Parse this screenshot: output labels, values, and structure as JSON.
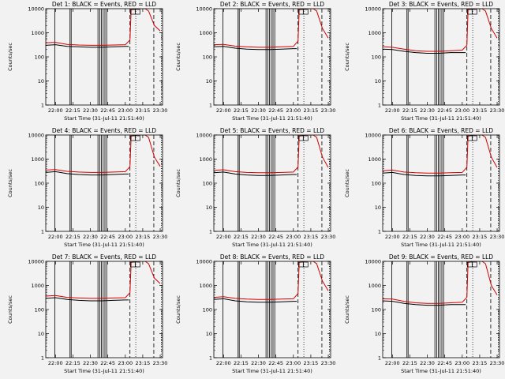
{
  "colors": {
    "background": "#f2f2f2",
    "events": "#000000",
    "lld": "#d40000",
    "axes": "#000000"
  },
  "chart_data": [
    {
      "type": "line",
      "title": "Det 1: BLACK = Events, RED = LLD",
      "ylabel": "Counts/sec",
      "xlabel": "Start Time (31-Jul-11 21:51:40)",
      "y_scale": "log",
      "ylim": [
        1,
        10000
      ],
      "y_tick_labels": [
        "1",
        "10",
        "100",
        "1000",
        "10000"
      ],
      "xlim": [
        "21:51:40",
        "23:32:00"
      ],
      "x_tick_labels": [
        "22:00",
        "22:15",
        "22:30",
        "22:45",
        "23:00",
        "23:15",
        "23:30"
      ],
      "series": [
        {
          "name": "BLACK = Events",
          "x": [
            "21:51:40",
            "22:00",
            "22:10",
            "22:20",
            "22:30",
            "22:40",
            "22:50",
            "23:00",
            "23:03"
          ],
          "y": [
            300,
            320,
            270,
            260,
            250,
            250,
            260,
            270,
            270
          ]
        },
        {
          "name": "RED = LLD",
          "x": [
            "21:51:40",
            "22:00",
            "22:10",
            "22:20",
            "22:30",
            "22:40",
            "22:50",
            "23:00",
            "23:04",
            "23:05",
            "23:10",
            "23:17",
            "23:20",
            "23:25",
            "23:30"
          ],
          "y": [
            380,
            400,
            330,
            310,
            300,
            300,
            310,
            320,
            500,
            9000,
            10000,
            10000,
            8000,
            2000,
            1200
          ]
        }
      ]
    },
    {
      "type": "line",
      "title": "Det 2: BLACK = Events, RED = LLD",
      "ylabel": "Counts/sec",
      "xlabel": "Start Time (31-Jul-11 21:51:40)",
      "y_scale": "log",
      "ylim": [
        1,
        10000
      ],
      "y_tick_labels": [
        "1",
        "10",
        "100",
        "1000",
        "10000"
      ],
      "xlim": [
        "21:51:40",
        "23:32:00"
      ],
      "x_tick_labels": [
        "22:00",
        "22:15",
        "22:30",
        "22:45",
        "23:00",
        "23:15",
        "23:30"
      ],
      "series": [
        {
          "name": "BLACK = Events",
          "x": [
            "21:51:40",
            "22:00",
            "22:10",
            "22:20",
            "22:30",
            "22:40",
            "22:50",
            "23:00",
            "23:03"
          ],
          "y": [
            260,
            270,
            230,
            210,
            200,
            200,
            210,
            220,
            220
          ]
        },
        {
          "name": "RED = LLD",
          "x": [
            "21:51:40",
            "22:00",
            "22:10",
            "22:20",
            "22:30",
            "22:40",
            "22:50",
            "23:00",
            "23:04",
            "23:05",
            "23:10",
            "23:17",
            "23:20",
            "23:25",
            "23:30"
          ],
          "y": [
            320,
            330,
            280,
            260,
            250,
            250,
            260,
            270,
            450,
            9000,
            10000,
            10000,
            8000,
            1500,
            600
          ]
        }
      ]
    },
    {
      "type": "line",
      "title": "Det 3: BLACK = Events, RED = LLD",
      "ylabel": "Counts/sec",
      "xlabel": "Start Time (31-Jul-11 21:51:40)",
      "y_scale": "log",
      "ylim": [
        1,
        10000
      ],
      "y_tick_labels": [
        "1",
        "10",
        "100",
        "1000",
        "10000"
      ],
      "xlim": [
        "21:51:40",
        "23:32:00"
      ],
      "x_tick_labels": [
        "22:00",
        "22:15",
        "22:30",
        "22:45",
        "23:00",
        "23:15",
        "23:30"
      ],
      "series": [
        {
          "name": "BLACK = Events",
          "x": [
            "21:51:40",
            "22:00",
            "22:10",
            "22:20",
            "22:30",
            "22:40",
            "22:50",
            "23:00",
            "23:03"
          ],
          "y": [
            210,
            200,
            170,
            150,
            140,
            140,
            150,
            150,
            150
          ]
        },
        {
          "name": "RED = LLD",
          "x": [
            "21:51:40",
            "22:00",
            "22:10",
            "22:20",
            "22:30",
            "22:40",
            "22:50",
            "23:00",
            "23:04",
            "23:05",
            "23:10",
            "23:17",
            "23:20",
            "23:25",
            "23:30"
          ],
          "y": [
            260,
            250,
            210,
            180,
            170,
            170,
            180,
            190,
            300,
            9000,
            10000,
            10000,
            8000,
            1500,
            600
          ]
        }
      ]
    },
    {
      "type": "line",
      "title": "Det 4: BLACK = Events, RED = LLD",
      "ylabel": "Counts/sec",
      "xlabel": "Start Time (31-Jul-11 21:51:40)",
      "y_scale": "log",
      "ylim": [
        1,
        10000
      ],
      "y_tick_labels": [
        "1",
        "10",
        "100",
        "1000",
        "10000"
      ],
      "xlim": [
        "21:51:40",
        "23:32:00"
      ],
      "x_tick_labels": [
        "22:00",
        "22:15",
        "22:30",
        "22:45",
        "23:00",
        "23:15",
        "23:30"
      ],
      "series": [
        {
          "name": "BLACK = Events",
          "x": [
            "21:51:40",
            "22:00",
            "22:10",
            "22:20",
            "22:30",
            "22:40",
            "22:50",
            "23:00",
            "23:03"
          ],
          "y": [
            280,
            300,
            250,
            230,
            220,
            220,
            230,
            240,
            240
          ]
        },
        {
          "name": "RED = LLD",
          "x": [
            "21:51:40",
            "22:00",
            "22:10",
            "22:20",
            "22:30",
            "22:40",
            "22:50",
            "23:00",
            "23:04",
            "23:05",
            "23:10",
            "23:17",
            "23:20",
            "23:25",
            "23:30"
          ],
          "y": [
            350,
            370,
            310,
            290,
            280,
            280,
            290,
            300,
            480,
            9000,
            10000,
            10000,
            8000,
            1200,
            500
          ]
        }
      ]
    },
    {
      "type": "line",
      "title": "Det 5: BLACK = Events, RED = LLD",
      "ylabel": "Counts/sec",
      "xlabel": "Start Time (31-Jul-11 21:51:40)",
      "y_scale": "log",
      "ylim": [
        1,
        10000
      ],
      "y_tick_labels": [
        "1",
        "10",
        "100",
        "1000",
        "10000"
      ],
      "xlim": [
        "21:51:40",
        "23:32:00"
      ],
      "x_tick_labels": [
        "22:00",
        "22:15",
        "22:30",
        "22:45",
        "23:00",
        "23:15",
        "23:30"
      ],
      "series": [
        {
          "name": "BLACK = Events",
          "x": [
            "21:51:40",
            "22:00",
            "22:10",
            "22:20",
            "22:30",
            "22:40",
            "22:50",
            "23:00",
            "23:03"
          ],
          "y": [
            270,
            290,
            240,
            220,
            210,
            210,
            220,
            230,
            230
          ]
        },
        {
          "name": "RED = LLD",
          "x": [
            "21:51:40",
            "22:00",
            "22:10",
            "22:20",
            "22:30",
            "22:40",
            "22:50",
            "23:00",
            "23:04",
            "23:05",
            "23:10",
            "23:17",
            "23:20",
            "23:25",
            "23:30"
          ],
          "y": [
            340,
            360,
            300,
            280,
            270,
            270,
            280,
            290,
            470,
            9000,
            10000,
            10000,
            8000,
            1200,
            450
          ]
        }
      ]
    },
    {
      "type": "line",
      "title": "Det 6: BLACK = Events, RED = LLD",
      "ylabel": "Counts/sec",
      "xlabel": "Start Time (31-Jul-11 21:51:40)",
      "y_scale": "log",
      "ylim": [
        1,
        10000
      ],
      "y_tick_labels": [
        "1",
        "10",
        "100",
        "1000",
        "10000"
      ],
      "xlim": [
        "21:51:40",
        "23:32:00"
      ],
      "x_tick_labels": [
        "22:00",
        "22:15",
        "22:30",
        "22:45",
        "23:00",
        "23:15",
        "23:30"
      ],
      "series": [
        {
          "name": "BLACK = Events",
          "x": [
            "21:51:40",
            "22:00",
            "22:10",
            "22:20",
            "22:30",
            "22:40",
            "22:50",
            "23:00",
            "23:03"
          ],
          "y": [
            260,
            280,
            230,
            210,
            200,
            200,
            210,
            220,
            220
          ]
        },
        {
          "name": "RED = LLD",
          "x": [
            "21:51:40",
            "22:00",
            "22:10",
            "22:20",
            "22:30",
            "22:40",
            "22:50",
            "23:00",
            "23:04",
            "23:05",
            "23:10",
            "23:17",
            "23:20",
            "23:25",
            "23:30"
          ],
          "y": [
            330,
            350,
            290,
            270,
            260,
            260,
            270,
            280,
            460,
            9000,
            10000,
            10000,
            8000,
            1200,
            450
          ]
        }
      ]
    },
    {
      "type": "line",
      "title": "Det 7: BLACK = Events, RED = LLD",
      "ylabel": "Counts/sec",
      "xlabel": "Start Time (31-Jul-11 21:51:40)",
      "y_scale": "log",
      "ylim": [
        1,
        10000
      ],
      "y_tick_labels": [
        "1",
        "10",
        "100",
        "1000",
        "10000"
      ],
      "xlim": [
        "21:51:40",
        "23:32:00"
      ],
      "x_tick_labels": [
        "22:00",
        "22:15",
        "22:30",
        "22:45",
        "23:00",
        "23:15",
        "23:30"
      ],
      "series": [
        {
          "name": "BLACK = Events",
          "x": [
            "21:51:40",
            "22:00",
            "22:10",
            "22:20",
            "22:30",
            "22:40",
            "22:50",
            "23:00",
            "23:03"
          ],
          "y": [
            290,
            310,
            260,
            240,
            230,
            230,
            240,
            250,
            250
          ]
        },
        {
          "name": "RED = LLD",
          "x": [
            "21:51:40",
            "22:00",
            "22:10",
            "22:20",
            "22:30",
            "22:40",
            "22:50",
            "23:00",
            "23:04",
            "23:05",
            "23:10",
            "23:17",
            "23:20",
            "23:25",
            "23:30"
          ],
          "y": [
            360,
            380,
            320,
            300,
            290,
            290,
            300,
            310,
            490,
            9000,
            10000,
            10000,
            8000,
            2000,
            1200
          ]
        }
      ]
    },
    {
      "type": "line",
      "title": "Det 8: BLACK = Events, RED = LLD",
      "ylabel": "Counts/sec",
      "xlabel": "Start Time (31-Jul-11 21:51:40)",
      "y_scale": "log",
      "ylim": [
        1,
        10000
      ],
      "y_tick_labels": [
        "1",
        "10",
        "100",
        "1000",
        "10000"
      ],
      "xlim": [
        "21:51:40",
        "23:32:00"
      ],
      "x_tick_labels": [
        "22:00",
        "22:15",
        "22:30",
        "22:45",
        "23:00",
        "23:15",
        "23:30"
      ],
      "series": [
        {
          "name": "BLACK = Events",
          "x": [
            "21:51:40",
            "22:00",
            "22:10",
            "22:20",
            "22:30",
            "22:40",
            "22:50",
            "23:00",
            "23:03"
          ],
          "y": [
            260,
            280,
            230,
            210,
            200,
            200,
            210,
            220,
            220
          ]
        },
        {
          "name": "RED = LLD",
          "x": [
            "21:51:40",
            "22:00",
            "22:10",
            "22:20",
            "22:30",
            "22:40",
            "22:50",
            "23:00",
            "23:04",
            "23:05",
            "23:10",
            "23:17",
            "23:20",
            "23:25",
            "23:30"
          ],
          "y": [
            320,
            340,
            290,
            270,
            260,
            260,
            270,
            280,
            460,
            9000,
            10000,
            10000,
            8000,
            1500,
            600
          ]
        }
      ]
    },
    {
      "type": "line",
      "title": "Det 9: BLACK = Events, RED = LLD",
      "ylabel": "Counts/sec",
      "xlabel": "Start Time (31-Jul-11 21:51:40)",
      "y_scale": "log",
      "ylim": [
        1,
        10000
      ],
      "y_tick_labels": [
        "1",
        "10",
        "100",
        "1000",
        "10000"
      ],
      "xlim": [
        "21:51:40",
        "23:32:00"
      ],
      "x_tick_labels": [
        "22:00",
        "22:15",
        "22:30",
        "22:45",
        "23:00",
        "23:15",
        "23:30"
      ],
      "series": [
        {
          "name": "BLACK = Events",
          "x": [
            "21:51:40",
            "22:00",
            "22:10",
            "22:20",
            "22:30",
            "22:40",
            "22:50",
            "23:00",
            "23:03"
          ],
          "y": [
            230,
            220,
            180,
            160,
            150,
            150,
            160,
            160,
            160
          ]
        },
        {
          "name": "RED = LLD",
          "x": [
            "21:51:40",
            "22:00",
            "22:10",
            "22:20",
            "22:30",
            "22:40",
            "22:50",
            "23:00",
            "23:04",
            "23:05",
            "23:10",
            "23:17",
            "23:20",
            "23:25",
            "23:30"
          ],
          "y": [
            280,
            270,
            220,
            190,
            180,
            180,
            190,
            200,
            320,
            9000,
            10000,
            10000,
            8000,
            1000,
            400
          ]
        }
      ]
    }
  ]
}
